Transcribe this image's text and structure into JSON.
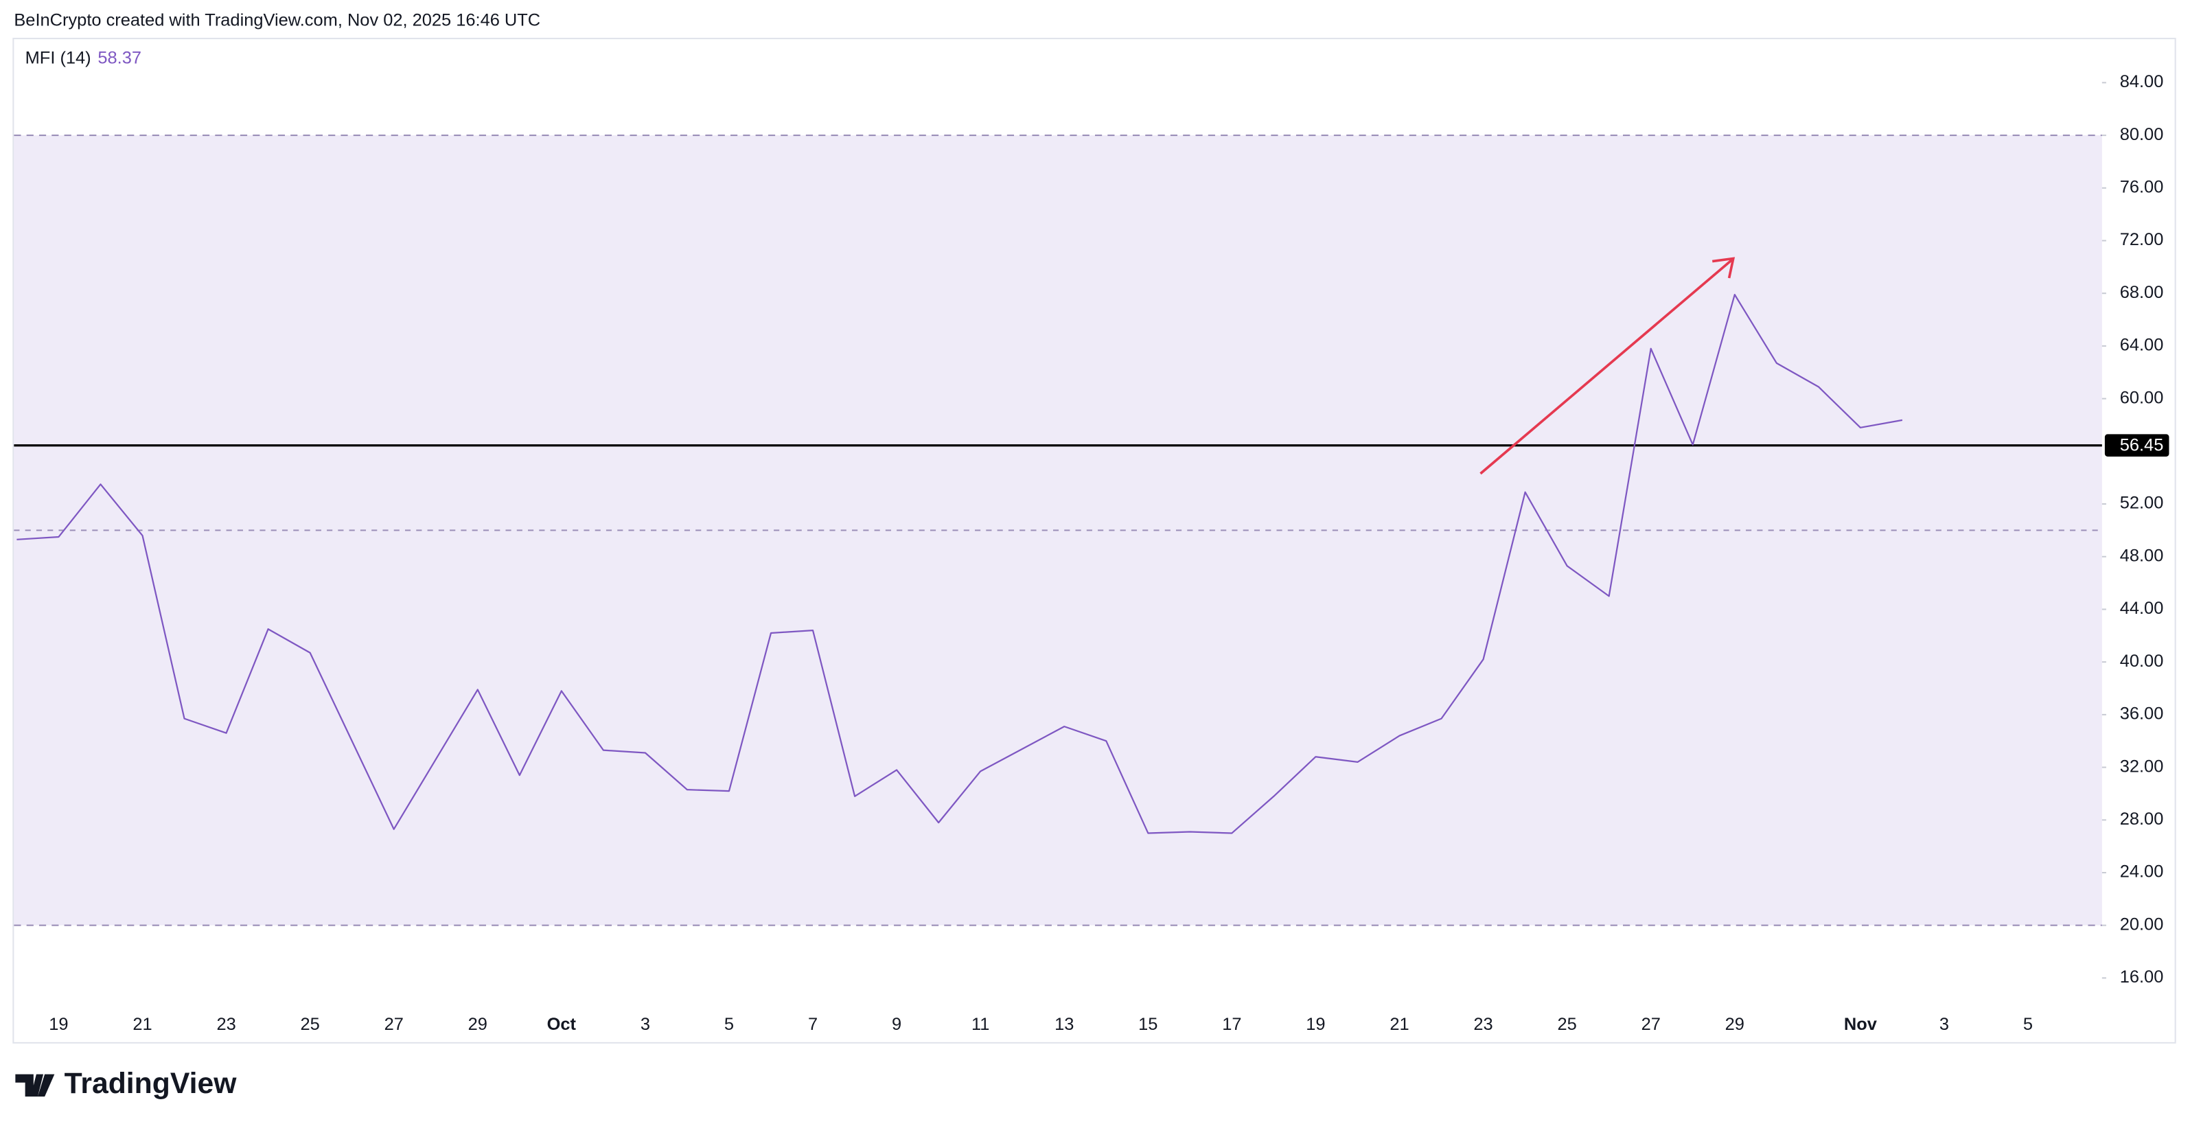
{
  "header": {
    "credit": "BeInCrypto created with TradingView.com, Nov 02, 2025 16:46 UTC"
  },
  "footer": {
    "brand": "TradingView"
  },
  "chart_data": {
    "type": "line",
    "indicator": "MFI (14)",
    "categories": [
      null,
      "19",
      null,
      "21",
      null,
      "23",
      null,
      "25",
      null,
      "27",
      null,
      "29",
      null,
      "Oct",
      null,
      "3",
      null,
      "5",
      null,
      "7",
      null,
      "9",
      null,
      "11",
      null,
      "13",
      null,
      "15",
      null,
      "17",
      null,
      "19",
      null,
      "21",
      null,
      "23",
      null,
      "25",
      null,
      "27",
      null,
      "29",
      null,
      null,
      "Nov",
      null,
      "3",
      null,
      "5",
      null
    ],
    "series": [
      {
        "name": "MFI",
        "color": "#7e57c2",
        "values": [
          49.3,
          49.5,
          53.5,
          49.6,
          35.7,
          34.6,
          42.5,
          40.7,
          34.0,
          27.3,
          32.6,
          37.9,
          31.4,
          37.8,
          33.3,
          33.1,
          30.3,
          30.2,
          42.2,
          42.4,
          29.8,
          31.8,
          27.8,
          31.7,
          33.4,
          35.1,
          34.0,
          27.0,
          27.1,
          27.0,
          29.8,
          32.8,
          32.4,
          34.4,
          35.7,
          40.2,
          52.9,
          47.3,
          45.0,
          63.8,
          56.5,
          67.9,
          62.7,
          60.9,
          57.8,
          58.37,
          null,
          null,
          null,
          null
        ]
      }
    ],
    "band": {
      "upper": 80,
      "middle": 50,
      "lower": 20,
      "fill": "#efebf8",
      "line_color": "#9b8fb8"
    },
    "level": {
      "value": 56.45,
      "color": "#000000"
    },
    "ylim": [
      14.1,
      87.3
    ],
    "yticks": [
      {
        "value": 16,
        "label": "16.00"
      },
      {
        "value": 20,
        "label": "20.00"
      },
      {
        "value": 24,
        "label": "24.00"
      },
      {
        "value": 28,
        "label": "28.00"
      },
      {
        "value": 32,
        "label": "32.00"
      },
      {
        "value": 36,
        "label": "36.00"
      },
      {
        "value": 40,
        "label": "40.00"
      },
      {
        "value": 44,
        "label": "44.00"
      },
      {
        "value": 48,
        "label": "48.00"
      },
      {
        "value": 52,
        "label": "52.00"
      },
      {
        "value": 60,
        "label": "60.00"
      },
      {
        "value": 64,
        "label": "64.00"
      },
      {
        "value": 68,
        "label": "68.00"
      },
      {
        "value": 72,
        "label": "72.00"
      },
      {
        "value": 76,
        "label": "76.00"
      },
      {
        "value": 80,
        "label": "80.00"
      },
      {
        "value": 84,
        "label": "84.00"
      }
    ],
    "grid": false
  }
}
